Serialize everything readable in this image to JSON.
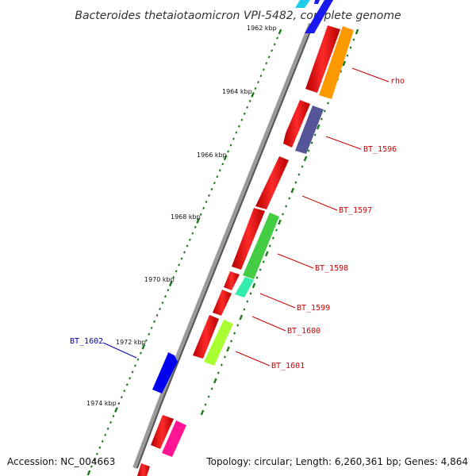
{
  "title": "Bacteroides thetaiotaomicron VPI-5482, complete genome",
  "accession": "Accession: NC_004663",
  "summary": "Topology: circular; Length: 6,260,361 bp; Genes: 4,864",
  "scale_labels": [
    "1962 kbp",
    "1964 kbp",
    "1966 kbp",
    "1968 kbp",
    "1970 kbp",
    "1972 kbp",
    "1974 kbp"
  ],
  "gene_labels": [
    {
      "text": "rho",
      "color": "#cc0000"
    },
    {
      "text": "BT_1596",
      "color": "#cc0000"
    },
    {
      "text": "BT_1597",
      "color": "#cc0000"
    },
    {
      "text": "BT_1598",
      "color": "#cc0000"
    },
    {
      "text": "BT_1599",
      "color": "#cc0000"
    },
    {
      "text": "BT_1600",
      "color": "#cc0000"
    },
    {
      "text": "BT_1601",
      "color": "#cc0000"
    },
    {
      "text": "BT_1602",
      "color": "#0000aa"
    }
  ],
  "colors": {
    "backbone": "#777777",
    "tick": "#1a7a1a",
    "cds_red": "#ff0000",
    "rho_orange": "#ff9900",
    "bt1596_purple": "#555599",
    "bt1598_green": "#44cc44",
    "bt1599_cyan": "#33eeaa",
    "bt1601_lime": "#aaff33",
    "bt1602_blue": "#0000ee",
    "magenta": "#ff1493"
  }
}
